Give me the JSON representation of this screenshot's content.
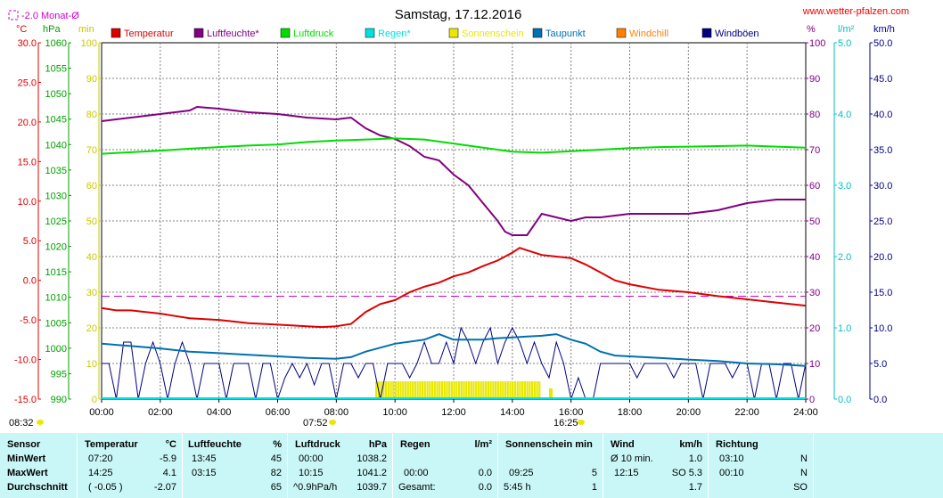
{
  "header": {
    "title": "Samstag, 17.12.2016",
    "source": "www.wetter-pfalzen.com",
    "monthly_avg_label": "-2.0 Monat-Ø"
  },
  "axis_units": {
    "left_temp": "°C",
    "left_pressure": "hPa",
    "left_min": "min",
    "right_percent": "%",
    "right_rain": "l/m²",
    "right_wind": "km/h"
  },
  "time_marks": {
    "sunrise": "08:32",
    "sunset": "16:25",
    "mark1": "07:52"
  },
  "legend": [
    {
      "label": "Temperatur",
      "color": "#dd0000"
    },
    {
      "label": "Luftfeuchte*",
      "color": "#800080"
    },
    {
      "label": "Luftdruck",
      "color": "#00dd00"
    },
    {
      "label": "Regen*",
      "color": "#00e0e0"
    },
    {
      "label": "Sonnenschein",
      "color": "#e8e800"
    },
    {
      "label": "Taupunkt",
      "color": "#0070b0"
    },
    {
      "label": "Windchill",
      "color": "#ff8000"
    },
    {
      "label": "Windböen",
      "color": "#000080"
    }
  ],
  "chart_data": {
    "type": "line",
    "title": "Samstag, 17.12.2016",
    "x_ticks": [
      "00:00",
      "02:00",
      "04:00",
      "06:00",
      "08:00",
      "10:00",
      "12:00",
      "14:00",
      "16:00",
      "18:00",
      "20:00",
      "22:00",
      "24:00"
    ],
    "x_range_hours": [
      0,
      24
    ],
    "axes": {
      "temp": {
        "min": -15,
        "max": 30,
        "ticks": [
          "30.0",
          "25.0",
          "20.0",
          "15.0",
          "10.0",
          "5.0",
          "0.0",
          "-5.0",
          "-10.0",
          "-15.0"
        ],
        "color": "#dd0000"
      },
      "pressure": {
        "min": 990,
        "max": 1060,
        "ticks": [
          "1060",
          "1055",
          "1050",
          "1045",
          "1040",
          "1035",
          "1030",
          "1025",
          "1020",
          "1015",
          "1010",
          "1005",
          "1000",
          "995",
          "990"
        ],
        "color": "#00a000"
      },
      "minutes": {
        "min": 0,
        "max": 100,
        "ticks": [
          "100",
          "90",
          "80",
          "70",
          "60",
          "50",
          "40",
          "30",
          "20",
          "10",
          "0"
        ],
        "color": "#c8c800"
      },
      "percent": {
        "min": 0,
        "max": 100,
        "ticks": [
          "100",
          "90",
          "80",
          "70",
          "60",
          "50",
          "40",
          "30",
          "20",
          "10",
          "0"
        ],
        "color": "#800080"
      },
      "rain": {
        "min": 0,
        "max": 5,
        "ticks": [
          "5.0",
          "4.0",
          "3.0",
          "2.0",
          "1.0",
          "0.0"
        ],
        "color": "#00c0c0"
      },
      "wind": {
        "min": 0,
        "max": 50,
        "ticks": [
          "50.0",
          "45.0",
          "40.0",
          "35.0",
          "30.0",
          "25.0",
          "20.0",
          "15.0",
          "10.0",
          "5.0",
          "0.0"
        ],
        "color": "#000080"
      }
    },
    "monthly_avg_temp": -2.0,
    "series": [
      {
        "name": "Temperatur",
        "axis": "temp",
        "color": "#dd0000",
        "x": [
          0,
          0.5,
          1,
          1.5,
          2,
          2.5,
          3,
          4,
          4.5,
          5,
          6,
          7,
          7.5,
          8,
          8.5,
          9,
          9.5,
          10,
          10.5,
          11,
          11.5,
          12,
          12.5,
          13,
          13.5,
          14,
          14.25,
          14.5,
          15,
          15.5,
          16,
          16.5,
          17,
          17.5,
          18,
          19,
          20,
          21,
          22,
          23,
          24
        ],
        "y": [
          -3.5,
          -3.8,
          -3.8,
          -4,
          -4.2,
          -4.5,
          -4.8,
          -5,
          -5.2,
          -5.4,
          -5.6,
          -5.8,
          -5.9,
          -5.8,
          -5.5,
          -4,
          -3,
          -2.5,
          -1.5,
          -0.8,
          -0.3,
          0.5,
          1,
          1.8,
          2.5,
          3.5,
          4.1,
          3.8,
          3.2,
          3,
          2.8,
          2,
          1,
          0,
          -0.5,
          -1.2,
          -1.5,
          -2,
          -2.4,
          -2.8,
          -3.2
        ]
      },
      {
        "name": "Luftfeuchte*",
        "axis": "percent",
        "color": "#800080",
        "x": [
          0,
          1,
          2,
          3,
          3.25,
          4,
          5,
          6,
          7,
          8,
          8.5,
          9,
          9.5,
          10,
          10.5,
          11,
          11.5,
          12,
          12.5,
          13,
          13.5,
          13.75,
          14,
          14.5,
          15,
          15.5,
          16,
          16.5,
          17,
          18,
          19,
          20,
          21,
          22,
          23,
          24
        ],
        "y": [
          78,
          79,
          80,
          81,
          82,
          81.5,
          80.5,
          80,
          79,
          78.5,
          79,
          76,
          74,
          73,
          71,
          68,
          67,
          63,
          60,
          55,
          50,
          47,
          46,
          46,
          52,
          51,
          50,
          51,
          51,
          52,
          52,
          52,
          53,
          55,
          56,
          56
        ]
      },
      {
        "name": "Luftdruck",
        "axis": "pressure",
        "color": "#00dd00",
        "x": [
          0,
          1,
          2,
          3,
          4,
          5,
          6,
          7,
          8,
          9,
          10,
          11,
          12,
          13,
          14,
          15,
          16,
          17,
          18,
          19,
          20,
          21,
          22,
          23,
          24
        ],
        "y": [
          1038.2,
          1038.5,
          1038.8,
          1039.2,
          1039.5,
          1039.8,
          1040.0,
          1040.5,
          1040.8,
          1041.0,
          1041.2,
          1041.0,
          1040.2,
          1039.4,
          1038.6,
          1038.4,
          1038.7,
          1039.0,
          1039.3,
          1039.5,
          1039.6,
          1039.7,
          1039.8,
          1039.6,
          1039.4
        ]
      },
      {
        "name": "Taupunkt",
        "axis": "temp",
        "color": "#0070b0",
        "x": [
          0,
          1,
          2,
          3,
          4,
          5,
          6,
          7,
          8,
          8.5,
          9,
          10,
          11,
          11.5,
          12,
          13,
          13.5,
          14,
          14.5,
          15,
          15.5,
          16,
          16.5,
          17,
          17.5,
          18,
          19,
          20,
          21,
          22,
          23,
          24
        ],
        "y": [
          -8,
          -8.3,
          -8.6,
          -9,
          -9.2,
          -9.4,
          -9.6,
          -9.8,
          -9.9,
          -9.7,
          -9,
          -8,
          -7.5,
          -6.8,
          -7.5,
          -7.5,
          -7.3,
          -7.2,
          -7.1,
          -7,
          -6.8,
          -7.5,
          -8,
          -9,
          -9.5,
          -9.6,
          -9.8,
          -10,
          -10.2,
          -10.5,
          -10.6,
          -10.8
        ]
      }
    ],
    "wind_gusts": {
      "name": "Windböen",
      "axis": "wind",
      "color": "#000080",
      "x": [
        0,
        0.25,
        0.5,
        0.75,
        1,
        1.25,
        1.5,
        1.75,
        2,
        2.25,
        2.5,
        2.75,
        3,
        3.25,
        3.5,
        3.75,
        4,
        4.25,
        4.5,
        4.75,
        5,
        5.25,
        5.5,
        5.75,
        6,
        6.25,
        6.5,
        6.75,
        7,
        7.25,
        7.5,
        7.75,
        8,
        8.25,
        8.5,
        8.75,
        9,
        9.25,
        9.5,
        9.75,
        10,
        10.25,
        10.5,
        10.75,
        11,
        11.25,
        11.5,
        11.75,
        12,
        12.25,
        12.5,
        12.75,
        13,
        13.25,
        13.5,
        13.75,
        14,
        14.25,
        14.5,
        14.75,
        15,
        15.25,
        15.5,
        15.75,
        16,
        16.25,
        16.5,
        16.75,
        17,
        17.25,
        17.5,
        17.75,
        18,
        18.25,
        18.5,
        18.75,
        19,
        19.25,
        19.5,
        19.75,
        20,
        20.25,
        20.5,
        20.75,
        21,
        21.25,
        21.5,
        21.75,
        22,
        22.25,
        22.5,
        22.75,
        23,
        23.25,
        23.5,
        23.75,
        24
      ],
      "y": [
        5,
        5,
        0,
        8,
        8,
        0,
        5,
        8,
        5,
        0,
        5,
        8,
        5,
        0,
        5,
        5,
        5,
        0,
        5,
        5,
        5,
        0,
        5,
        5,
        0,
        3,
        5,
        3,
        5,
        2,
        5,
        5,
        0,
        5,
        5,
        3,
        5,
        5,
        0,
        5,
        5,
        5,
        3,
        5,
        8,
        5,
        5,
        8,
        5,
        10,
        8,
        5,
        8,
        10,
        5,
        8,
        10,
        8,
        5,
        8,
        5,
        3,
        8,
        5,
        0,
        3,
        0,
        0,
        5,
        5,
        5,
        5,
        5,
        3,
        5,
        5,
        5,
        5,
        3,
        5,
        5,
        5,
        0,
        5,
        5,
        5,
        3,
        5,
        5,
        0,
        5,
        5,
        0,
        5,
        5,
        0,
        5
      ]
    },
    "sunshine": {
      "name": "Sonnenschein",
      "axis": "minutes",
      "color": "#e8e800",
      "start_hour": 9.33,
      "end_hour": 14.92,
      "level": 5,
      "extra": [
        {
          "hour": 15.25,
          "level": 3
        }
      ]
    }
  },
  "stats": {
    "sensor": {
      "header": "Sensor",
      "rows": [
        "MinWert",
        "MaxWert",
        "Durchschnitt"
      ]
    },
    "temperatur": {
      "header": "Temperatur",
      "unit": "°C",
      "rows": [
        [
          "07:20",
          "-5.9"
        ],
        [
          "14:25",
          "4.1"
        ],
        [
          "( -0.05 )",
          "-2.07"
        ]
      ]
    },
    "luftfeuchte": {
      "header": "Luftfeuchte",
      "unit": "%",
      "rows": [
        [
          "13:45",
          "45"
        ],
        [
          "03:15",
          "82"
        ],
        [
          "",
          "65"
        ]
      ]
    },
    "luftdruck": {
      "header": "Luftdruck",
      "unit": "hPa",
      "rows": [
        [
          "00:00",
          "1038.2"
        ],
        [
          "10:15",
          "1041.2"
        ],
        [
          "^0.9hPa/h",
          "1039.7"
        ]
      ]
    },
    "regen": {
      "header": "Regen",
      "unit": "l/m²",
      "rows": [
        [
          "",
          ""
        ],
        [
          "00:00",
          "0.0"
        ],
        [
          "Gesamt:",
          "0.0"
        ]
      ]
    },
    "sonnenschein": {
      "header": "Sonnenschein min",
      "unit": "",
      "rows": [
        [
          "",
          ""
        ],
        [
          "09:25",
          "5"
        ],
        [
          "5:45 h",
          "1"
        ]
      ]
    },
    "wind": {
      "header": "Wind",
      "unit": "km/h",
      "rows": [
        [
          "Ø 10 min.",
          "1.0"
        ],
        [
          "12:15",
          "SO 5.3"
        ],
        [
          "",
          "1.7"
        ]
      ]
    },
    "richtung": {
      "header": "Richtung",
      "unit": "",
      "rows": [
        [
          "03:10",
          "N"
        ],
        [
          "00:10",
          "N"
        ],
        [
          "",
          "SO"
        ]
      ]
    }
  }
}
